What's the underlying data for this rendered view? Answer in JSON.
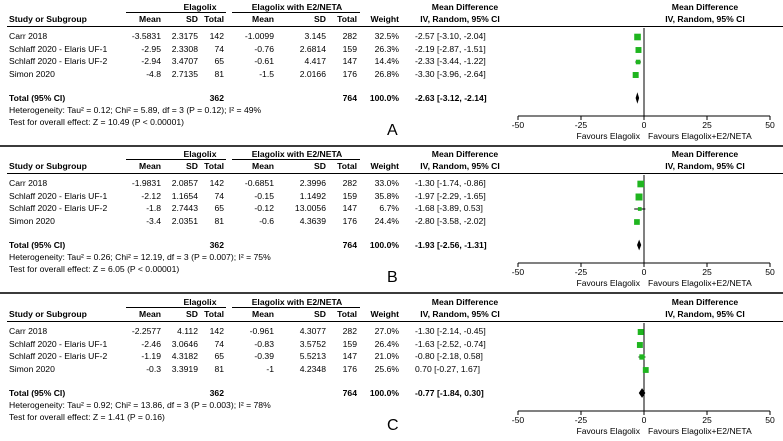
{
  "chart_data": [
    {
      "type": "forest",
      "label": "A",
      "group1": "Elagolix",
      "group2": "Elagolix with E2/NETA",
      "columns": [
        "Study or Subgroup",
        "Mean",
        "SD",
        "Total",
        "Mean",
        "SD",
        "Total",
        "Weight"
      ],
      "effect_header": "Mean Difference",
      "effect_subheader": "IV, Random, 95% CI",
      "plot_header": "Mean Difference",
      "plot_subheader": "IV, Random, 95% CI",
      "studies": [
        {
          "name": "Carr 2018",
          "mean1": "-3.5831",
          "sd1": "2.3175",
          "n1": "142",
          "mean2": "-1.0099",
          "sd2": "3.145",
          "n2": "282",
          "weight": "32.5%",
          "ci_text": "-2.57 [-3.10, -2.04]",
          "md": -2.57,
          "lo": -3.1,
          "hi": -2.04
        },
        {
          "name": "Schlaff 2020 - Elaris UF-1",
          "mean1": "-2.95",
          "sd1": "2.3308",
          "n1": "74",
          "mean2": "-0.76",
          "sd2": "2.6814",
          "n2": "159",
          "weight": "26.3%",
          "ci_text": "-2.19 [-2.87, -1.51]",
          "md": -2.19,
          "lo": -2.87,
          "hi": -1.51
        },
        {
          "name": "Schlaff 2020 - Elaris UF-2",
          "mean1": "-2.94",
          "sd1": "3.4707",
          "n1": "65",
          "mean2": "-0.61",
          "sd2": "4.417",
          "n2": "147",
          "weight": "14.4%",
          "ci_text": "-2.33 [-3.44, -1.22]",
          "md": -2.33,
          "lo": -3.44,
          "hi": -1.22
        },
        {
          "name": "Simon 2020",
          "mean1": "-4.8",
          "sd1": "2.7135",
          "n1": "81",
          "mean2": "-1.5",
          "sd2": "2.0166",
          "n2": "176",
          "weight": "26.8%",
          "ci_text": "-3.30 [-3.96, -2.64]",
          "md": -3.3,
          "lo": -3.96,
          "hi": -2.64
        }
      ],
      "total": {
        "label": "Total (95% CI)",
        "n1": "362",
        "n2": "764",
        "weight": "100.0%",
        "ci_text": "-2.63 [-3.12, -2.14]",
        "md": -2.63,
        "lo": -3.12,
        "hi": -2.14
      },
      "heterogeneity": "Heterogeneity: Tau² = 0.12; Chi² = 5.89, df = 3 (P = 0.12); I² = 49%",
      "overall": "Test for overall effect: Z = 10.49 (P < 0.00001)",
      "axis": {
        "min": -50,
        "max": 50,
        "ticks": [
          "-50",
          "-25",
          "0",
          "25",
          "50"
        ]
      },
      "favours_left": "Favours Elagolix",
      "favours_right": "Favours Elagolix+E2/NETA"
    },
    {
      "type": "forest",
      "label": "B",
      "group1": "Elagolix",
      "group2": "Elagolix with E2/NETA",
      "columns": [
        "Study or Subgroup",
        "Mean",
        "SD",
        "Total",
        "Mean",
        "SD",
        "Total",
        "Weight"
      ],
      "effect_header": "Mean Difference",
      "effect_subheader": "IV, Random, 95% CI",
      "plot_header": "Mean Difference",
      "plot_subheader": "IV, Random, 95% CI",
      "studies": [
        {
          "name": "Carr 2018",
          "mean1": "-1.9831",
          "sd1": "2.0857",
          "n1": "142",
          "mean2": "-0.6851",
          "sd2": "2.3996",
          "n2": "282",
          "weight": "33.0%",
          "ci_text": "-1.30 [-1.74, -0.86]",
          "md": -1.3,
          "lo": -1.74,
          "hi": -0.86
        },
        {
          "name": "Schlaff 2020 - Elaris UF-1",
          "mean1": "-2.12",
          "sd1": "1.1654",
          "n1": "74",
          "mean2": "-0.15",
          "sd2": "1.1492",
          "n2": "159",
          "weight": "35.8%",
          "ci_text": "-1.97 [-2.29, -1.65]",
          "md": -1.97,
          "lo": -2.29,
          "hi": -1.65
        },
        {
          "name": "Schlaff 2020 - Elaris UF-2",
          "mean1": "-1.8",
          "sd1": "2.7443",
          "n1": "65",
          "mean2": "-0.12",
          "sd2": "13.0056",
          "n2": "147",
          "weight": "6.7%",
          "ci_text": "-1.68 [-3.89, 0.53]",
          "md": -1.68,
          "lo": -3.89,
          "hi": 0.53
        },
        {
          "name": "Simon 2020",
          "mean1": "-3.4",
          "sd1": "2.0351",
          "n1": "81",
          "mean2": "-0.6",
          "sd2": "4.3639",
          "n2": "176",
          "weight": "24.4%",
          "ci_text": "-2.80 [-3.58, -2.02]",
          "md": -2.8,
          "lo": -3.58,
          "hi": -2.02
        }
      ],
      "total": {
        "label": "Total (95% CI)",
        "n1": "362",
        "n2": "764",
        "weight": "100.0%",
        "ci_text": "-1.93 [-2.56, -1.31]",
        "md": -1.93,
        "lo": -2.56,
        "hi": -1.31
      },
      "heterogeneity": "Heterogeneity: Tau² = 0.26; Chi² = 12.19, df = 3 (P = 0.007); I² = 75%",
      "overall": "Test for overall effect: Z = 6.05 (P < 0.00001)",
      "axis": {
        "min": -50,
        "max": 50,
        "ticks": [
          "-50",
          "-25",
          "0",
          "25",
          "50"
        ]
      },
      "favours_left": "Favours Elagolix",
      "favours_right": "Favours Elagolix+E2/NETA"
    },
    {
      "type": "forest",
      "label": "C",
      "group1": "Elagolix",
      "group2": "Elagolix with E2/NETA",
      "columns": [
        "Study or Subgroup",
        "Mean",
        "SD",
        "Total",
        "Mean",
        "SD",
        "Total",
        "Weight"
      ],
      "effect_header": "Mean Difference",
      "effect_subheader": "IV, Random, 95% CI",
      "plot_header": "Mean Difference",
      "plot_subheader": "IV, Random, 95% CI",
      "studies": [
        {
          "name": "Carr 2018",
          "mean1": "-2.2577",
          "sd1": "4.112",
          "n1": "142",
          "mean2": "-0.961",
          "sd2": "4.3077",
          "n2": "282",
          "weight": "27.0%",
          "ci_text": "-1.30 [-2.14, -0.45]",
          "md": -1.3,
          "lo": -2.14,
          "hi": -0.45
        },
        {
          "name": "Schlaff 2020 - Elaris UF-1",
          "mean1": "-2.46",
          "sd1": "3.0646",
          "n1": "74",
          "mean2": "-0.83",
          "sd2": "3.5752",
          "n2": "159",
          "weight": "26.4%",
          "ci_text": "-1.63 [-2.52, -0.74]",
          "md": -1.63,
          "lo": -2.52,
          "hi": -0.74
        },
        {
          "name": "Schlaff 2020 - Elaris UF-2",
          "mean1": "-1.19",
          "sd1": "4.3182",
          "n1": "65",
          "mean2": "-0.39",
          "sd2": "5.5213",
          "n2": "147",
          "weight": "21.0%",
          "ci_text": "-0.80 [-2.18, 0.58]",
          "md": -0.8,
          "lo": -2.18,
          "hi": 0.58
        },
        {
          "name": "Simon 2020",
          "mean1": "-0.3",
          "sd1": "3.3919",
          "n1": "81",
          "mean2": "-1",
          "sd2": "4.2348",
          "n2": "176",
          "weight": "25.6%",
          "ci_text": "0.70 [-0.27, 1.67]",
          "md": 0.7,
          "lo": -0.27,
          "hi": 1.67
        }
      ],
      "total": {
        "label": "Total (95% CI)",
        "n1": "362",
        "n2": "764",
        "weight": "100.0%",
        "ci_text": "-0.77 [-1.84, 0.30]",
        "md": -0.77,
        "lo": -1.84,
        "hi": 0.3
      },
      "heterogeneity": "Heterogeneity: Tau² = 0.92; Chi² = 13.86, df = 3 (P = 0.003); I² = 78%",
      "overall": "Test for overall effect: Z = 1.41 (P = 0.16)",
      "axis": {
        "min": -50,
        "max": 50,
        "ticks": [
          "-50",
          "-25",
          "0",
          "25",
          "50"
        ]
      },
      "favours_left": "Favours Elagolix",
      "favours_right": "Favours Elagolix+E2/NETA"
    }
  ],
  "colors": {
    "square": "#1fb51f",
    "line": "#000000",
    "separator": "#3b3b3b"
  }
}
